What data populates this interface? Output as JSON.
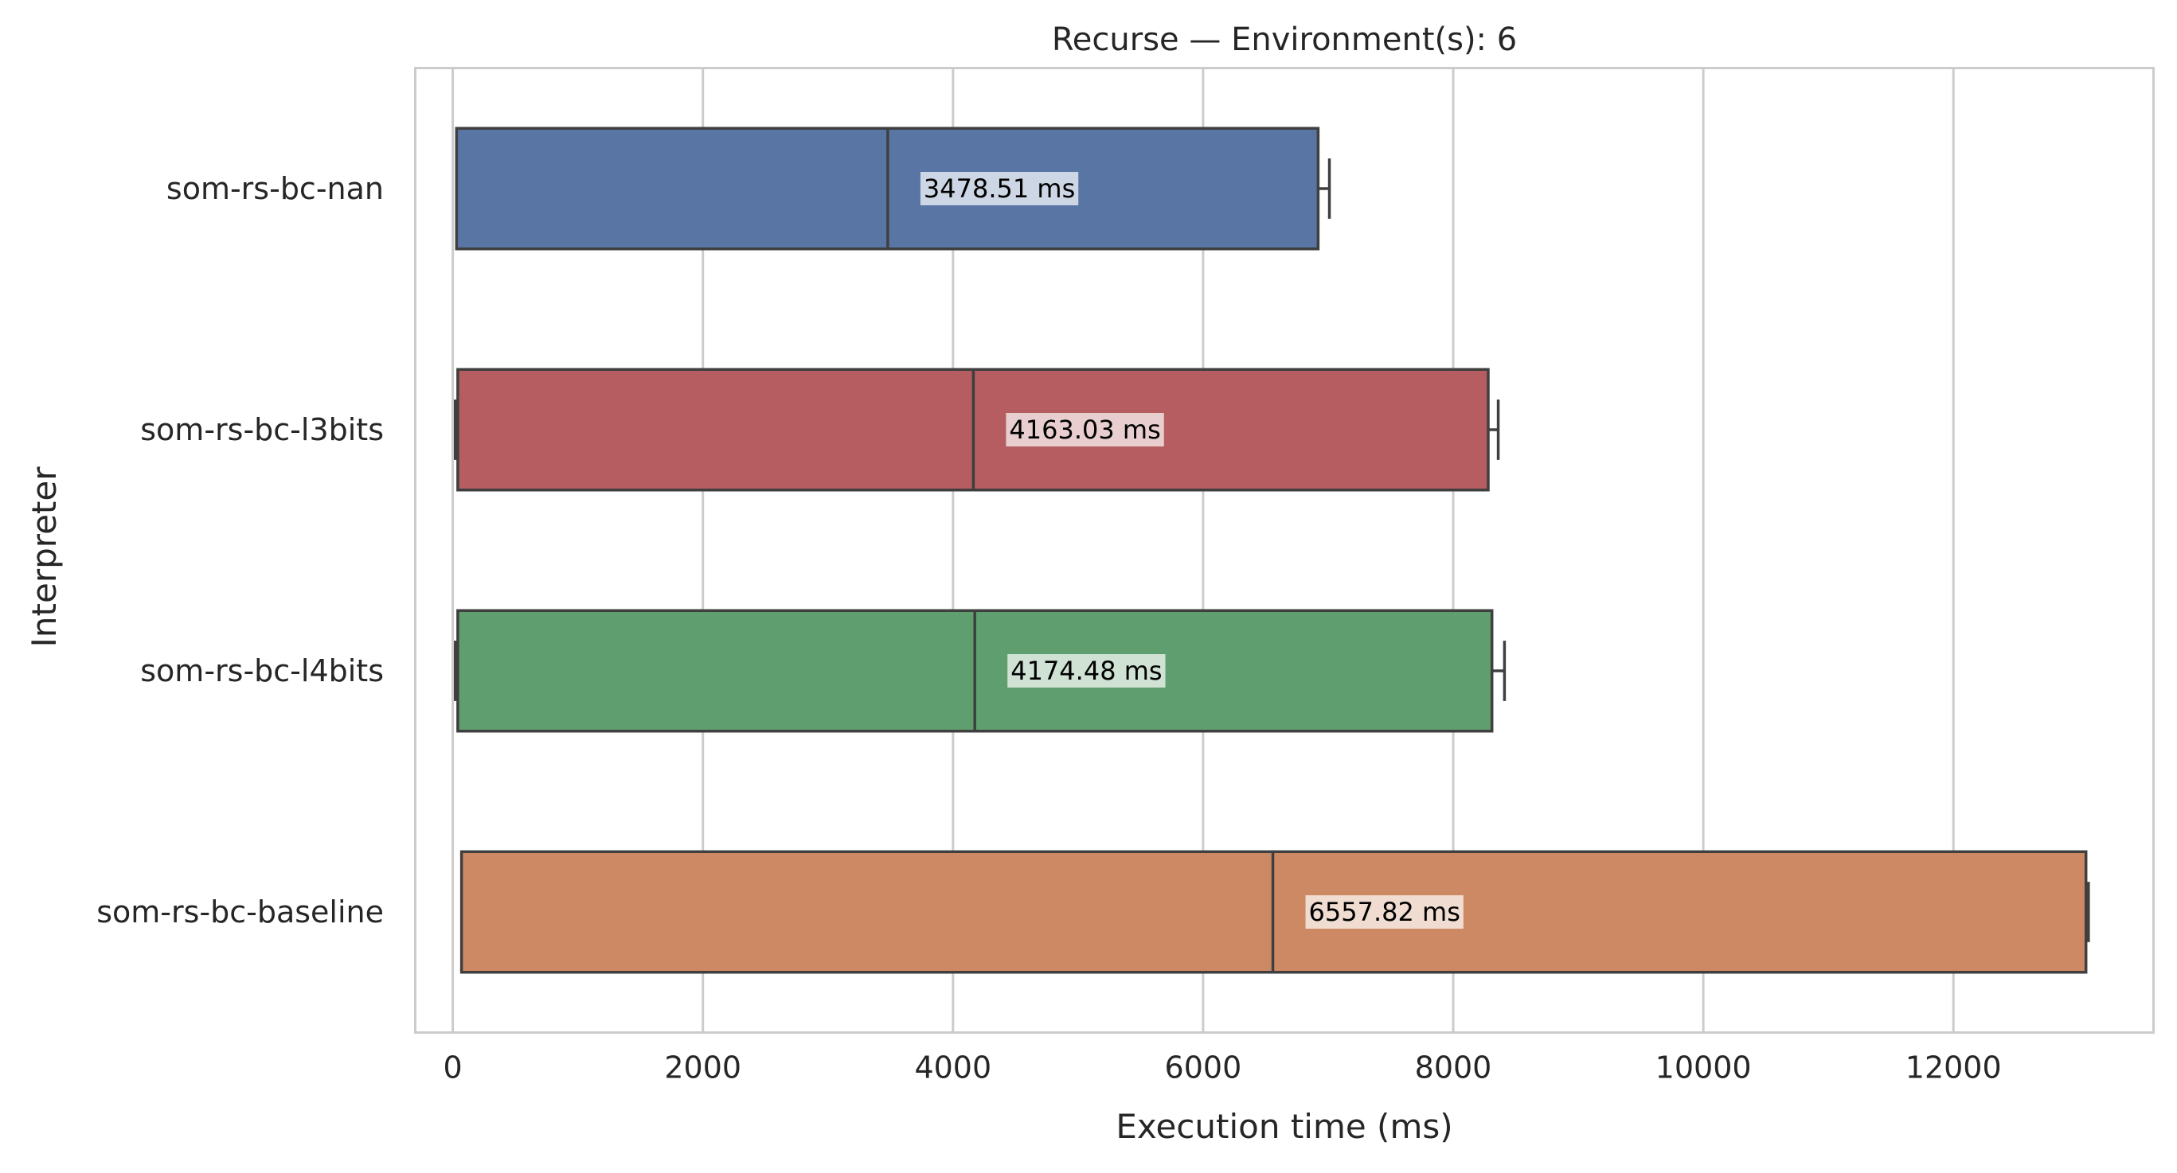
{
  "chart_data": {
    "type": "box",
    "orientation": "horizontal",
    "title": "Recurse — Environment(s): 6",
    "xlabel": "Execution time (ms)",
    "ylabel": "Interpreter",
    "xlim": [
      -300,
      13600
    ],
    "xticks": [
      0,
      2000,
      4000,
      6000,
      8000,
      10000,
      12000
    ],
    "xtick_labels": [
      "0",
      "2000",
      "4000",
      "6000",
      "8000",
      "10000",
      "12000"
    ],
    "grid": "vertical",
    "series": [
      {
        "name": "som-rs-bc-nan",
        "color": "#5875a4",
        "min": 30,
        "q1": 30,
        "median": 3478.51,
        "q3": 6920,
        "max": 7010,
        "median_label": "3478.51 ms"
      },
      {
        "name": "som-rs-bc-l3bits",
        "color": "#b55d60",
        "min": 20,
        "q1": 40,
        "median": 4163.03,
        "q3": 8280,
        "max": 8360,
        "median_label": "4163.03 ms"
      },
      {
        "name": "som-rs-bc-l4bits",
        "color": "#5f9e6e",
        "min": 20,
        "q1": 40,
        "median": 4174.48,
        "q3": 8310,
        "max": 8410,
        "median_label": "4174.48 ms"
      },
      {
        "name": "som-rs-bc-baseline",
        "color": "#cc8963",
        "min": 70,
        "q1": 70,
        "median": 6557.82,
        "q3": 13060,
        "max": 13080,
        "median_label": "6557.82 ms"
      }
    ]
  }
}
